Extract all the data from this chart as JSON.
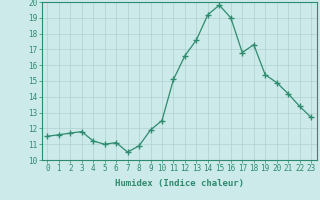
{
  "x": [
    0,
    1,
    2,
    3,
    4,
    5,
    6,
    7,
    8,
    9,
    10,
    11,
    12,
    13,
    14,
    15,
    16,
    17,
    18,
    19,
    20,
    21,
    22,
    23
  ],
  "y": [
    11.5,
    11.6,
    11.7,
    11.8,
    11.2,
    11.0,
    11.1,
    10.5,
    10.9,
    11.9,
    12.5,
    15.1,
    16.6,
    17.6,
    19.2,
    19.8,
    19.0,
    16.8,
    17.3,
    15.4,
    14.9,
    14.2,
    13.4,
    12.7
  ],
  "line_color": "#2e8b6e",
  "marker": "+",
  "marker_size": 4,
  "bg_color": "#cceaea",
  "grid_color": "#b0d0d0",
  "xlabel": "Humidex (Indice chaleur)",
  "xlim": [
    -0.5,
    23.5
  ],
  "ylim": [
    10,
    20
  ],
  "yticks": [
    10,
    11,
    12,
    13,
    14,
    15,
    16,
    17,
    18,
    19,
    20
  ],
  "xticks": [
    0,
    1,
    2,
    3,
    4,
    5,
    6,
    7,
    8,
    9,
    10,
    11,
    12,
    13,
    14,
    15,
    16,
    17,
    18,
    19,
    20,
    21,
    22,
    23
  ],
  "tick_fontsize": 5.5,
  "label_fontsize": 6.5
}
